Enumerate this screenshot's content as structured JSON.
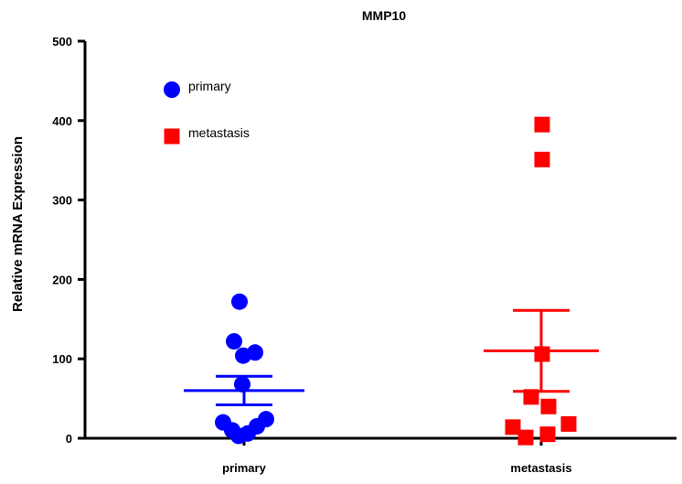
{
  "chart_data": {
    "type": "scatter",
    "title": "MMP10",
    "xlabel": "",
    "ylabel": "Relative mRNA Expression",
    "categories": [
      "primary",
      "metastasis"
    ],
    "ylim": [
      0,
      500
    ],
    "yticks": [
      0,
      100,
      200,
      300,
      400,
      500
    ],
    "legend": {
      "placement": "top-left",
      "entries": [
        {
          "label": "primary",
          "marker": "circle",
          "color": "#0000ff"
        },
        {
          "label": "metastasis",
          "marker": "square",
          "color": "#ff0000"
        }
      ]
    },
    "series": [
      {
        "category": "primary",
        "marker": "circle",
        "color": "#0000ff",
        "points": [
          {
            "offset": -0.5,
            "y": 172
          },
          {
            "offset": -1.1,
            "y": 122
          },
          {
            "offset": -0.1,
            "y": 104
          },
          {
            "offset": 1.2,
            "y": 108
          },
          {
            "offset": -0.2,
            "y": 68
          },
          {
            "offset": -2.3,
            "y": 20
          },
          {
            "offset": -1.3,
            "y": 10
          },
          {
            "offset": -0.6,
            "y": 3
          },
          {
            "offset": 0.4,
            "y": 6
          },
          {
            "offset": 1.4,
            "y": 15
          },
          {
            "offset": 2.4,
            "y": 24
          }
        ],
        "mean": 60,
        "sem": [
          42,
          78
        ]
      },
      {
        "category": "metastasis",
        "marker": "square",
        "color": "#ff0000",
        "points": [
          {
            "offset": 0.1,
            "y": 395
          },
          {
            "offset": 0.1,
            "y": 351
          },
          {
            "offset": 0.1,
            "y": 106
          },
          {
            "offset": -1.1,
            "y": 52
          },
          {
            "offset": 0.8,
            "y": 40
          },
          {
            "offset": -3.1,
            "y": 14
          },
          {
            "offset": -1.7,
            "y": 1
          },
          {
            "offset": 0.7,
            "y": 5
          },
          {
            "offset": 3.0,
            "y": 18
          }
        ],
        "mean": 110,
        "sem": [
          59,
          161
        ]
      }
    ]
  }
}
